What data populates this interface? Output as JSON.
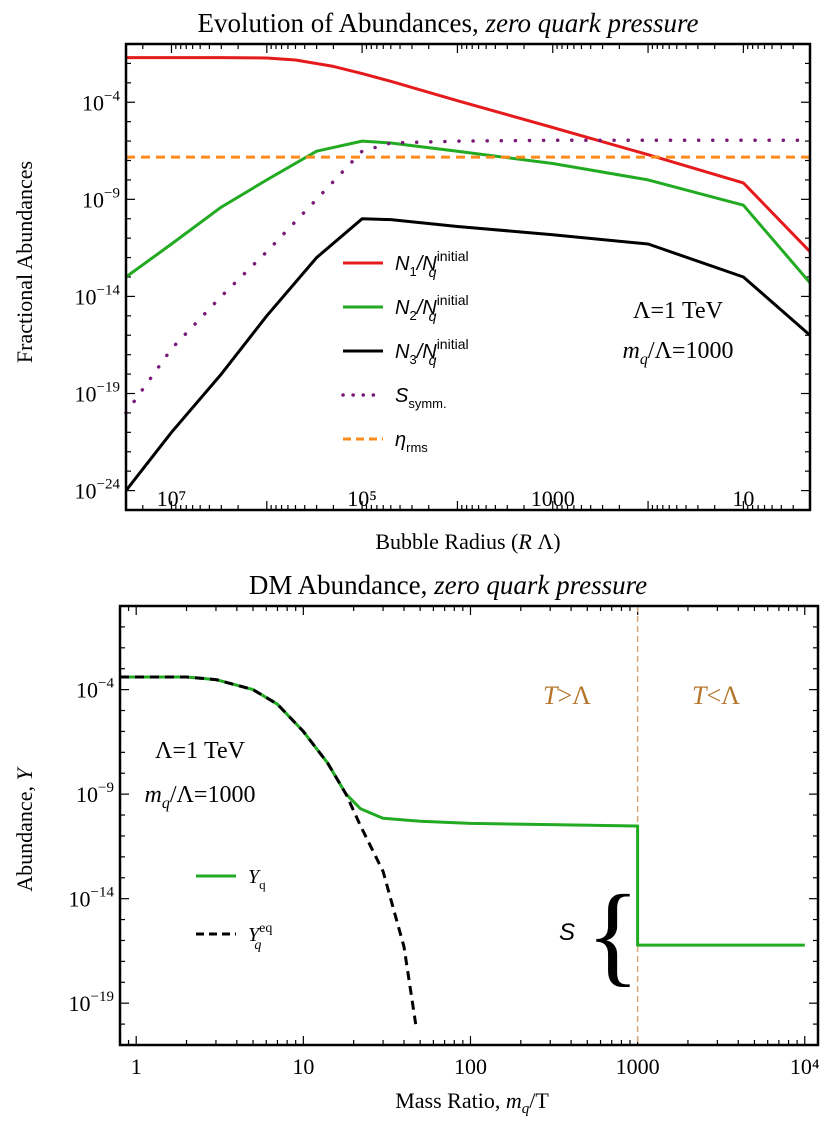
{
  "chart_data": [
    {
      "type": "line",
      "title_main": "Evolution of Abundances, ",
      "title_italic": "zero quark pressure",
      "xlabel_main": "Bubble Radius (",
      "xlabel_italic": "R",
      "xlabel_tail": " Λ)",
      "ylabel": "Fractional Abundances",
      "x_scale": "log",
      "x_reversed": true,
      "xlim": [
        30000000,
        2
      ],
      "ylim": [
        1e-25,
        0.1
      ],
      "x_ticks": [
        {
          "value": 10000000,
          "label": "10⁷"
        },
        {
          "value": 100000,
          "label": "10⁵"
        },
        {
          "value": 1000,
          "label": "1000"
        },
        {
          "value": 10,
          "label": "10"
        }
      ],
      "y_ticks": [
        {
          "exp": -4,
          "base": "10",
          "sup": "−4"
        },
        {
          "exp": -9,
          "base": "10",
          "sup": "−9"
        },
        {
          "exp": -14,
          "base": "10",
          "sup": "−14"
        },
        {
          "exp": -19,
          "base": "10",
          "sup": "−19"
        },
        {
          "exp": -24,
          "base": "10",
          "sup": "−24"
        }
      ],
      "annotation_line1": "Λ=1 TeV",
      "annotation_line2_m": "m",
      "annotation_line2_sub": "q",
      "annotation_line2_tail": "/Λ=1000",
      "legend_position": "center",
      "series": [
        {
          "id": "N1",
          "label_main": "N",
          "label_sub": "1",
          "label_mid": "/N",
          "label_sup": "initial",
          "label_sub2": "q",
          "color": "#e41a1c",
          "style": "solid",
          "x": [
            30000000,
            3000000,
            1000000,
            500000,
            200000,
            100000,
            50000,
            10000,
            1000,
            100,
            10,
            2
          ],
          "y": [
            0.02,
            0.02,
            0.019,
            0.015,
            0.007,
            0.003,
            0.0012,
            0.00012,
            5e-06,
            2e-07,
            7e-09,
            2e-12
          ]
        },
        {
          "id": "N2",
          "label_main": "N",
          "label_sub": "2",
          "label_mid": "/N",
          "label_sup": "initial",
          "label_sub2": "q",
          "color": "#22aa22",
          "style": "solid",
          "x": [
            30000000,
            10000000,
            3000000,
            1000000,
            300000,
            100000,
            50000,
            10000,
            1000,
            100,
            10,
            2
          ],
          "y": [
            1e-13,
            5e-12,
            4e-10,
            1e-08,
            3e-07,
            1e-06,
            8e-07,
            3e-07,
            7e-08,
            1e-08,
            5e-10,
            5e-14
          ]
        },
        {
          "id": "N3",
          "label_main": "N",
          "label_sub": "3",
          "label_mid": "/N",
          "label_sup": "initial",
          "label_sub2": "q",
          "color": "#000000",
          "style": "solid",
          "x": [
            30000000,
            10000000,
            3000000,
            1000000,
            300000,
            100000,
            50000,
            10000,
            1000,
            100,
            10,
            2
          ],
          "y": [
            1e-24,
            1e-21,
            1e-18,
            1e-15,
            1e-12,
            1e-10,
            9e-11,
            4e-11,
            1.5e-11,
            5e-12,
            1e-13,
            1e-16
          ]
        },
        {
          "id": "S",
          "label_main": "S",
          "label_sub": "symm.",
          "color": "#7a1a7a",
          "style": "dotted",
          "x": [
            30000000,
            10000000,
            3000000,
            1000000,
            300000,
            100000,
            50000,
            10000,
            1000,
            100,
            10,
            2
          ],
          "y": [
            1e-20,
            2e-17,
            1e-14,
            2e-12,
            1e-09,
            3e-07,
            8e-07,
            1e-06,
            1.1e-06,
            1.1e-06,
            1.1e-06,
            1.1e-06
          ]
        },
        {
          "id": "eta",
          "label_main": "η",
          "label_sub": "rms",
          "color": "#ff8c1a",
          "style": "dashed",
          "x": [
            30000000,
            2
          ],
          "y": [
            1.5e-07,
            1.5e-07
          ]
        }
      ]
    },
    {
      "type": "line",
      "title_main": "DM Abundance, ",
      "title_italic": "zero quark pressure",
      "xlabel_main": "Mass Ratio, ",
      "xlabel_italic": "m",
      "xlabel_sub": "q",
      "xlabel_tail": "/T",
      "ylabel_main": "Abundance, ",
      "ylabel_italic": "Y",
      "x_scale": "log",
      "xlim": [
        0.8,
        12000
      ],
      "ylim": [
        1e-21,
        1.0
      ],
      "x_ticks": [
        {
          "value": 1,
          "label": "1"
        },
        {
          "value": 10,
          "label": "10"
        },
        {
          "value": 100,
          "label": "100"
        },
        {
          "value": 1000,
          "label": "1000"
        },
        {
          "value": 10000,
          "label": "10⁴"
        }
      ],
      "y_ticks": [
        {
          "exp": -4,
          "base": "10",
          "sup": "−4"
        },
        {
          "exp": -9,
          "base": "10",
          "sup": "−9"
        },
        {
          "exp": -14,
          "base": "10",
          "sup": "−14"
        },
        {
          "exp": -19,
          "base": "10",
          "sup": "−19"
        }
      ],
      "annotation_line1": "Λ=1 TeV",
      "annotation_line2_m": "m",
      "annotation_line2_sub": "q",
      "annotation_line2_tail": "/Λ=1000",
      "region_left_T": "T",
      "region_left_op": ">Λ",
      "region_right_T": "T",
      "region_right_op": "<Λ",
      "transition_x": 1000,
      "jump_label": "S",
      "legend_position": "center-left",
      "series": [
        {
          "id": "Yq",
          "label_main": "Y",
          "label_sub": "q",
          "color": "#22aa22",
          "style": "solid",
          "x": [
            0.8,
            1,
            2,
            3,
            5,
            7,
            10,
            14,
            18,
            22,
            30,
            50,
            100,
            300,
            1000,
            1000,
            3000,
            10000
          ],
          "y": [
            0.0004,
            0.0004,
            0.0004,
            0.0003,
            0.0001,
            2e-05,
            1e-06,
            3e-08,
            1e-09,
            2e-10,
            7e-11,
            5e-11,
            4e-11,
            3.5e-11,
            3e-11,
            6e-17,
            6e-17,
            6e-17
          ]
        },
        {
          "id": "Yeq",
          "label_main": "Y",
          "label_sub": "q",
          "label_sup": "eq",
          "color": "#000000",
          "style": "dashed",
          "x": [
            0.8,
            1,
            2,
            3,
            5,
            7,
            10,
            14,
            18,
            22,
            30,
            40,
            47
          ],
          "y": [
            0.0004,
            0.0004,
            0.0004,
            0.0003,
            0.0001,
            2e-05,
            1e-06,
            3e-08,
            1e-09,
            3e-11,
            2e-13,
            5e-17,
            1e-20
          ]
        }
      ]
    }
  ]
}
